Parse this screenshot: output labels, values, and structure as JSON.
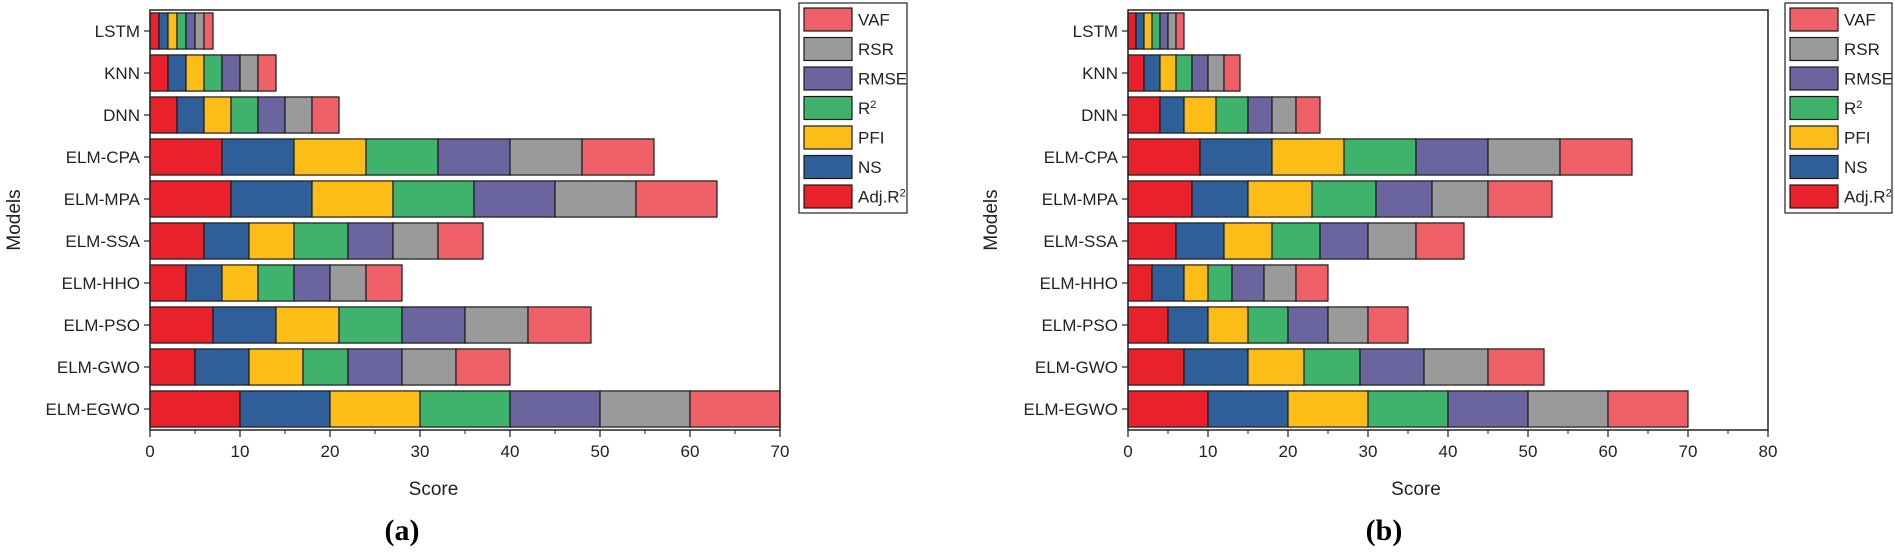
{
  "chart_data": [
    {
      "type": "bar",
      "orientation": "horizontal",
      "stacked": true,
      "panel_label": "(a)",
      "xlabel": "Score",
      "ylabel": "Models",
      "xlim": [
        0,
        70
      ],
      "xticks": [
        0,
        10,
        20,
        30,
        40,
        50,
        60,
        70
      ],
      "categories": [
        "LSTM",
        "KNN",
        "DNN",
        "ELM-CPA",
        "ELM-MPA",
        "ELM-SSA",
        "ELM-HHO",
        "ELM-PSO",
        "ELM-GWO",
        "ELM-EGWO"
      ],
      "series": [
        {
          "name": "Adj.R",
          "sup": "2",
          "color": "#e8212b",
          "values": [
            1,
            2,
            3,
            8,
            9,
            6,
            4,
            7,
            5,
            10
          ]
        },
        {
          "name": "NS",
          "sup": "",
          "color": "#2f5f98",
          "values": [
            1,
            2,
            3,
            8,
            9,
            5,
            4,
            7,
            6,
            10
          ]
        },
        {
          "name": "PFI",
          "sup": "",
          "color": "#fcbe16",
          "values": [
            1,
            2,
            3,
            8,
            9,
            5,
            4,
            7,
            6,
            10
          ]
        },
        {
          "name": "R",
          "sup": "2",
          "color": "#3fb36b",
          "values": [
            1,
            2,
            3,
            8,
            9,
            6,
            4,
            7,
            5,
            10
          ]
        },
        {
          "name": "RMSE",
          "sup": "",
          "color": "#6a659f",
          "values": [
            1,
            2,
            3,
            8,
            9,
            5,
            4,
            7,
            6,
            10
          ]
        },
        {
          "name": "RSR",
          "sup": "",
          "color": "#9a9a9a",
          "values": [
            1,
            2,
            3,
            8,
            9,
            5,
            4,
            7,
            6,
            10
          ]
        },
        {
          "name": "VAF",
          "sup": "",
          "color": "#ef6068",
          "values": [
            1,
            2,
            3,
            8,
            9,
            5,
            4,
            7,
            6,
            10
          ]
        }
      ]
    },
    {
      "type": "bar",
      "orientation": "horizontal",
      "stacked": true,
      "panel_label": "(b)",
      "xlabel": "Score",
      "ylabel": "Models",
      "xlim": [
        0,
        80
      ],
      "xticks": [
        0,
        10,
        20,
        30,
        40,
        50,
        60,
        70,
        80
      ],
      "categories": [
        "LSTM",
        "KNN",
        "DNN",
        "ELM-CPA",
        "ELM-MPA",
        "ELM-SSA",
        "ELM-HHO",
        "ELM-PSO",
        "ELM-GWO",
        "ELM-EGWO"
      ],
      "series": [
        {
          "name": "Adj.R",
          "sup": "2",
          "color": "#e8212b",
          "values": [
            1,
            2,
            4,
            9,
            8,
            6,
            3,
            5,
            7,
            10
          ]
        },
        {
          "name": "NS",
          "sup": "",
          "color": "#2f5f98",
          "values": [
            1,
            2,
            3,
            9,
            7,
            6,
            4,
            5,
            8,
            10
          ]
        },
        {
          "name": "PFI",
          "sup": "",
          "color": "#fcbe16",
          "values": [
            1,
            2,
            4,
            9,
            8,
            6,
            3,
            5,
            7,
            10
          ]
        },
        {
          "name": "R",
          "sup": "2",
          "color": "#3fb36b",
          "values": [
            1,
            2,
            4,
            9,
            8,
            6,
            3,
            5,
            7,
            10
          ]
        },
        {
          "name": "RMSE",
          "sup": "",
          "color": "#6a659f",
          "values": [
            1,
            2,
            3,
            9,
            7,
            6,
            4,
            5,
            8,
            10
          ]
        },
        {
          "name": "RSR",
          "sup": "",
          "color": "#9a9a9a",
          "values": [
            1,
            2,
            3,
            9,
            7,
            6,
            4,
            5,
            8,
            10
          ]
        },
        {
          "name": "VAF",
          "sup": "",
          "color": "#ef6068",
          "values": [
            1,
            2,
            3,
            9,
            8,
            6,
            4,
            5,
            7,
            10
          ]
        }
      ]
    }
  ]
}
